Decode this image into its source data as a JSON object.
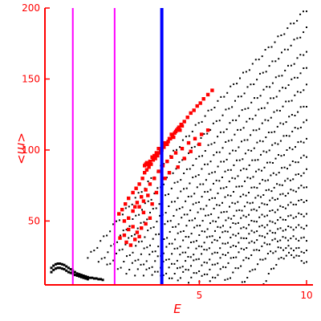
{
  "chart_data": {
    "type": "scatter",
    "xlabel": "E",
    "ylabel": "<m>",
    "xlim": [
      -2.2,
      10.3
    ],
    "ylim": [
      5,
      200
    ],
    "xticks": [
      {
        "value": 5,
        "label": "5"
      },
      {
        "value": 10,
        "label": "10"
      }
    ],
    "yticks": [
      {
        "value": 50,
        "label": "50"
      },
      {
        "value": 100,
        "label": "100"
      },
      {
        "value": 150,
        "label": "150"
      },
      {
        "value": 200,
        "label": "200"
      }
    ],
    "grid": false,
    "colors": {
      "axis": "#ff0000",
      "black_points": "#000000",
      "red_points": "#ff0000",
      "magenta_lines": "#ff00ff",
      "blue_line": "#0000ff"
    },
    "vertical_lines": [
      {
        "x": -0.9,
        "color": "#ff00ff"
      },
      {
        "x": 1.05,
        "color": "#ff00ff"
      },
      {
        "x": 3.25,
        "color": "#0000ff"
      }
    ],
    "black_families": [
      {
        "start": [
          -0.2,
          24
        ],
        "end": [
          10,
          199
        ],
        "n": 70
      },
      {
        "start": [
          0.3,
          20
        ],
        "end": [
          10,
          185
        ],
        "n": 68
      },
      {
        "start": [
          0.7,
          18
        ],
        "end": [
          10,
          170
        ],
        "n": 66
      },
      {
        "start": [
          1.2,
          16
        ],
        "end": [
          10,
          158
        ],
        "n": 64
      },
      {
        "start": [
          1.6,
          14
        ],
        "end": [
          10,
          145
        ],
        "n": 62
      },
      {
        "start": [
          2.0,
          13
        ],
        "end": [
          10,
          132
        ],
        "n": 60
      },
      {
        "start": [
          2.4,
          12
        ],
        "end": [
          10,
          120
        ],
        "n": 58
      },
      {
        "start": [
          2.8,
          11
        ],
        "end": [
          10,
          108
        ],
        "n": 56
      },
      {
        "start": [
          3.2,
          10
        ],
        "end": [
          10,
          96
        ],
        "n": 54
      },
      {
        "start": [
          3.6,
          9
        ],
        "end": [
          10,
          85
        ],
        "n": 52
      },
      {
        "start": [
          4.0,
          9
        ],
        "end": [
          10,
          75
        ],
        "n": 50
      },
      {
        "start": [
          4.5,
          8
        ],
        "end": [
          10,
          65
        ],
        "n": 46
      },
      {
        "start": [
          5.0,
          8
        ],
        "end": [
          10,
          55
        ],
        "n": 42
      },
      {
        "start": [
          5.5,
          7
        ],
        "end": [
          10,
          46
        ],
        "n": 38
      },
      {
        "start": [
          6.2,
          7
        ],
        "end": [
          10,
          37
        ],
        "n": 32
      },
      {
        "start": [
          7.0,
          6
        ],
        "end": [
          10,
          28
        ],
        "n": 26
      },
      {
        "start": [
          8.0,
          6
        ],
        "end": [
          10,
          20
        ],
        "n": 18
      }
    ],
    "low_branch": [
      [
        -1.9,
        17
      ],
      [
        -1.8,
        18.5
      ],
      [
        -1.7,
        19.5
      ],
      [
        -1.6,
        20
      ],
      [
        -1.5,
        20
      ],
      [
        -1.4,
        19.5
      ],
      [
        -1.3,
        19
      ],
      [
        -1.2,
        18
      ],
      [
        -1.1,
        17
      ],
      [
        -1.0,
        16
      ],
      [
        -0.9,
        15
      ],
      [
        -0.8,
        14
      ],
      [
        -0.7,
        13
      ],
      [
        -0.6,
        12.5
      ],
      [
        -0.5,
        12
      ],
      [
        -0.4,
        11.5
      ],
      [
        -0.3,
        11
      ],
      [
        -0.2,
        10.5
      ],
      [
        -0.1,
        10
      ],
      [
        0.0,
        10
      ],
      [
        0.1,
        9.5
      ],
      [
        0.2,
        9.5
      ],
      [
        0.3,
        9
      ],
      [
        0.4,
        9
      ],
      [
        0.5,
        8.5
      ],
      [
        -1.9,
        14
      ],
      [
        -1.8,
        15.5
      ],
      [
        -1.7,
        16.5
      ],
      [
        -1.6,
        17
      ],
      [
        -1.5,
        17
      ],
      [
        -1.4,
        16.5
      ],
      [
        -1.3,
        16
      ],
      [
        -1.2,
        15
      ],
      [
        -1.1,
        14
      ],
      [
        -1.0,
        13.5
      ],
      [
        -0.9,
        13
      ],
      [
        -0.8,
        12
      ],
      [
        -0.7,
        11.5
      ],
      [
        -0.6,
        11
      ],
      [
        -0.5,
        10.5
      ],
      [
        -0.4,
        10
      ],
      [
        -0.3,
        9.5
      ],
      [
        -0.2,
        9
      ]
    ],
    "red_points": [
      [
        1.25,
        55
      ],
      [
        1.4,
        58
      ],
      [
        1.55,
        62
      ],
      [
        1.7,
        66
      ],
      [
        1.9,
        70
      ],
      [
        2.05,
        73
      ],
      [
        2.2,
        76
      ],
      [
        2.35,
        80
      ],
      [
        2.45,
        84
      ],
      [
        2.55,
        86
      ],
      [
        2.65,
        88
      ],
      [
        2.75,
        90
      ],
      [
        2.85,
        93
      ],
      [
        2.95,
        94
      ],
      [
        3.05,
        96
      ],
      [
        3.15,
        98
      ],
      [
        3.25,
        100
      ],
      [
        3.35,
        102
      ],
      [
        3.45,
        104
      ],
      [
        3.55,
        106
      ],
      [
        3.65,
        108
      ],
      [
        3.75,
        110
      ],
      [
        3.85,
        112
      ],
      [
        3.95,
        114
      ],
      [
        4.05,
        116
      ],
      [
        4.15,
        118
      ],
      [
        4.3,
        120
      ],
      [
        4.45,
        123
      ],
      [
        4.6,
        126
      ],
      [
        4.75,
        128
      ],
      [
        4.9,
        131
      ],
      [
        5.05,
        133
      ],
      [
        5.2,
        136
      ],
      [
        5.4,
        139
      ],
      [
        5.6,
        142
      ],
      [
        2.45,
        89
      ],
      [
        2.5,
        90
      ],
      [
        2.55,
        91
      ],
      [
        2.6,
        90
      ],
      [
        2.7,
        92
      ],
      [
        2.8,
        95
      ],
      [
        3.0,
        98
      ],
      [
        3.1,
        101
      ],
      [
        3.3,
        103
      ],
      [
        3.4,
        105
      ],
      [
        3.6,
        108
      ],
      [
        3.7,
        111
      ],
      [
        3.9,
        113
      ],
      [
        4.0,
        115
      ],
      [
        2.9,
        96
      ],
      [
        3.0,
        97
      ],
      [
        3.2,
        99
      ],
      [
        3.5,
        104
      ],
      [
        3.8,
        109
      ],
      [
        4.1,
        114
      ],
      [
        4.2,
        117
      ],
      [
        1.5,
        50
      ],
      [
        1.7,
        52
      ],
      [
        1.9,
        57
      ],
      [
        2.0,
        60
      ],
      [
        2.1,
        63
      ],
      [
        2.3,
        67
      ],
      [
        2.5,
        72
      ],
      [
        2.7,
        76
      ],
      [
        2.9,
        80
      ],
      [
        3.1,
        85
      ],
      [
        3.3,
        89
      ],
      [
        3.5,
        92
      ],
      [
        3.7,
        95
      ],
      [
        3.9,
        98
      ],
      [
        4.2,
        101
      ],
      [
        4.5,
        105
      ],
      [
        4.8,
        108
      ],
      [
        5.1,
        111
      ],
      [
        5.4,
        114
      ],
      [
        1.3,
        38
      ],
      [
        1.5,
        40
      ],
      [
        1.7,
        44
      ],
      [
        1.9,
        46
      ],
      [
        2.1,
        42
      ],
      [
        2.3,
        45
      ],
      [
        2.5,
        48
      ],
      [
        2.7,
        52
      ],
      [
        2.2,
        60
      ],
      [
        2.4,
        64
      ],
      [
        2.6,
        68
      ],
      [
        1.6,
        35
      ],
      [
        1.8,
        33
      ],
      [
        2.0,
        37
      ],
      [
        2.2,
        39
      ],
      [
        2.4,
        56
      ],
      [
        2.8,
        62
      ],
      [
        3.0,
        70
      ],
      [
        3.4,
        80
      ],
      [
        3.6,
        84
      ],
      [
        4.0,
        88
      ],
      [
        4.3,
        94
      ],
      [
        4.6,
        99
      ],
      [
        5.0,
        104
      ]
    ]
  }
}
